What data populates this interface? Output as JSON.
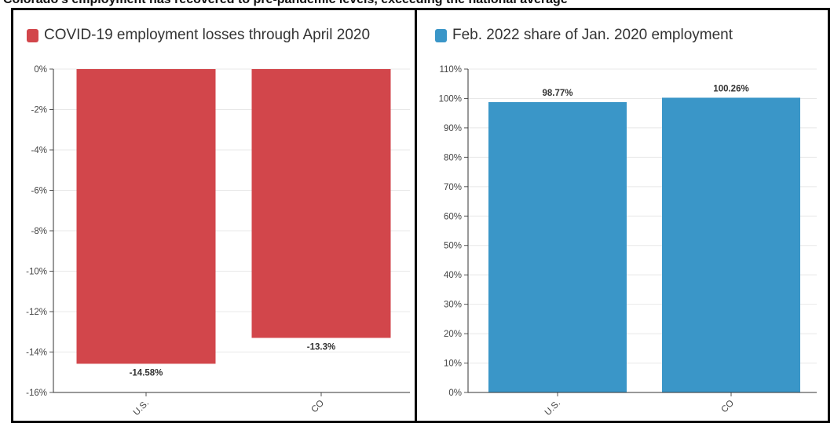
{
  "top_text": "Colorado's employment has recovered to pre-pandemic levels, exceeding the national average",
  "chart_data": [
    {
      "type": "bar",
      "title": "COVID-19 employment losses through April 2020",
      "legend_color": "#d2464b",
      "bar_color": "#d2464b",
      "categories": [
        "U.S.",
        "CO"
      ],
      "values": [
        -14.58,
        -13.3
      ],
      "value_labels": [
        "-14.58%",
        "-13.3%"
      ],
      "ylim": [
        -16,
        0
      ],
      "yticks": [
        0,
        -2,
        -4,
        -6,
        -8,
        -10,
        -12,
        -14,
        -16
      ],
      "ytick_labels": [
        "0%",
        "-2%",
        "-4%",
        "-6%",
        "-8%",
        "-10%",
        "-12%",
        "-14%",
        "-16%"
      ],
      "xlabel": "",
      "ylabel": "",
      "grid": true
    },
    {
      "type": "bar",
      "title": "Feb. 2022 share of Jan. 2020 employment",
      "legend_color": "#3a96c8",
      "bar_color": "#3a96c8",
      "categories": [
        "U.S.",
        "CO"
      ],
      "values": [
        98.77,
        100.26
      ],
      "value_labels": [
        "98.77%",
        "100.26%"
      ],
      "ylim": [
        0,
        110
      ],
      "yticks": [
        110,
        100,
        90,
        80,
        70,
        60,
        50,
        40,
        30,
        20,
        10,
        0
      ],
      "ytick_labels": [
        "110%",
        "100%",
        "90%",
        "80%",
        "70%",
        "60%",
        "50%",
        "40%",
        "30%",
        "20%",
        "10%",
        "0%"
      ],
      "xlabel": "",
      "ylabel": "",
      "grid": true
    }
  ]
}
